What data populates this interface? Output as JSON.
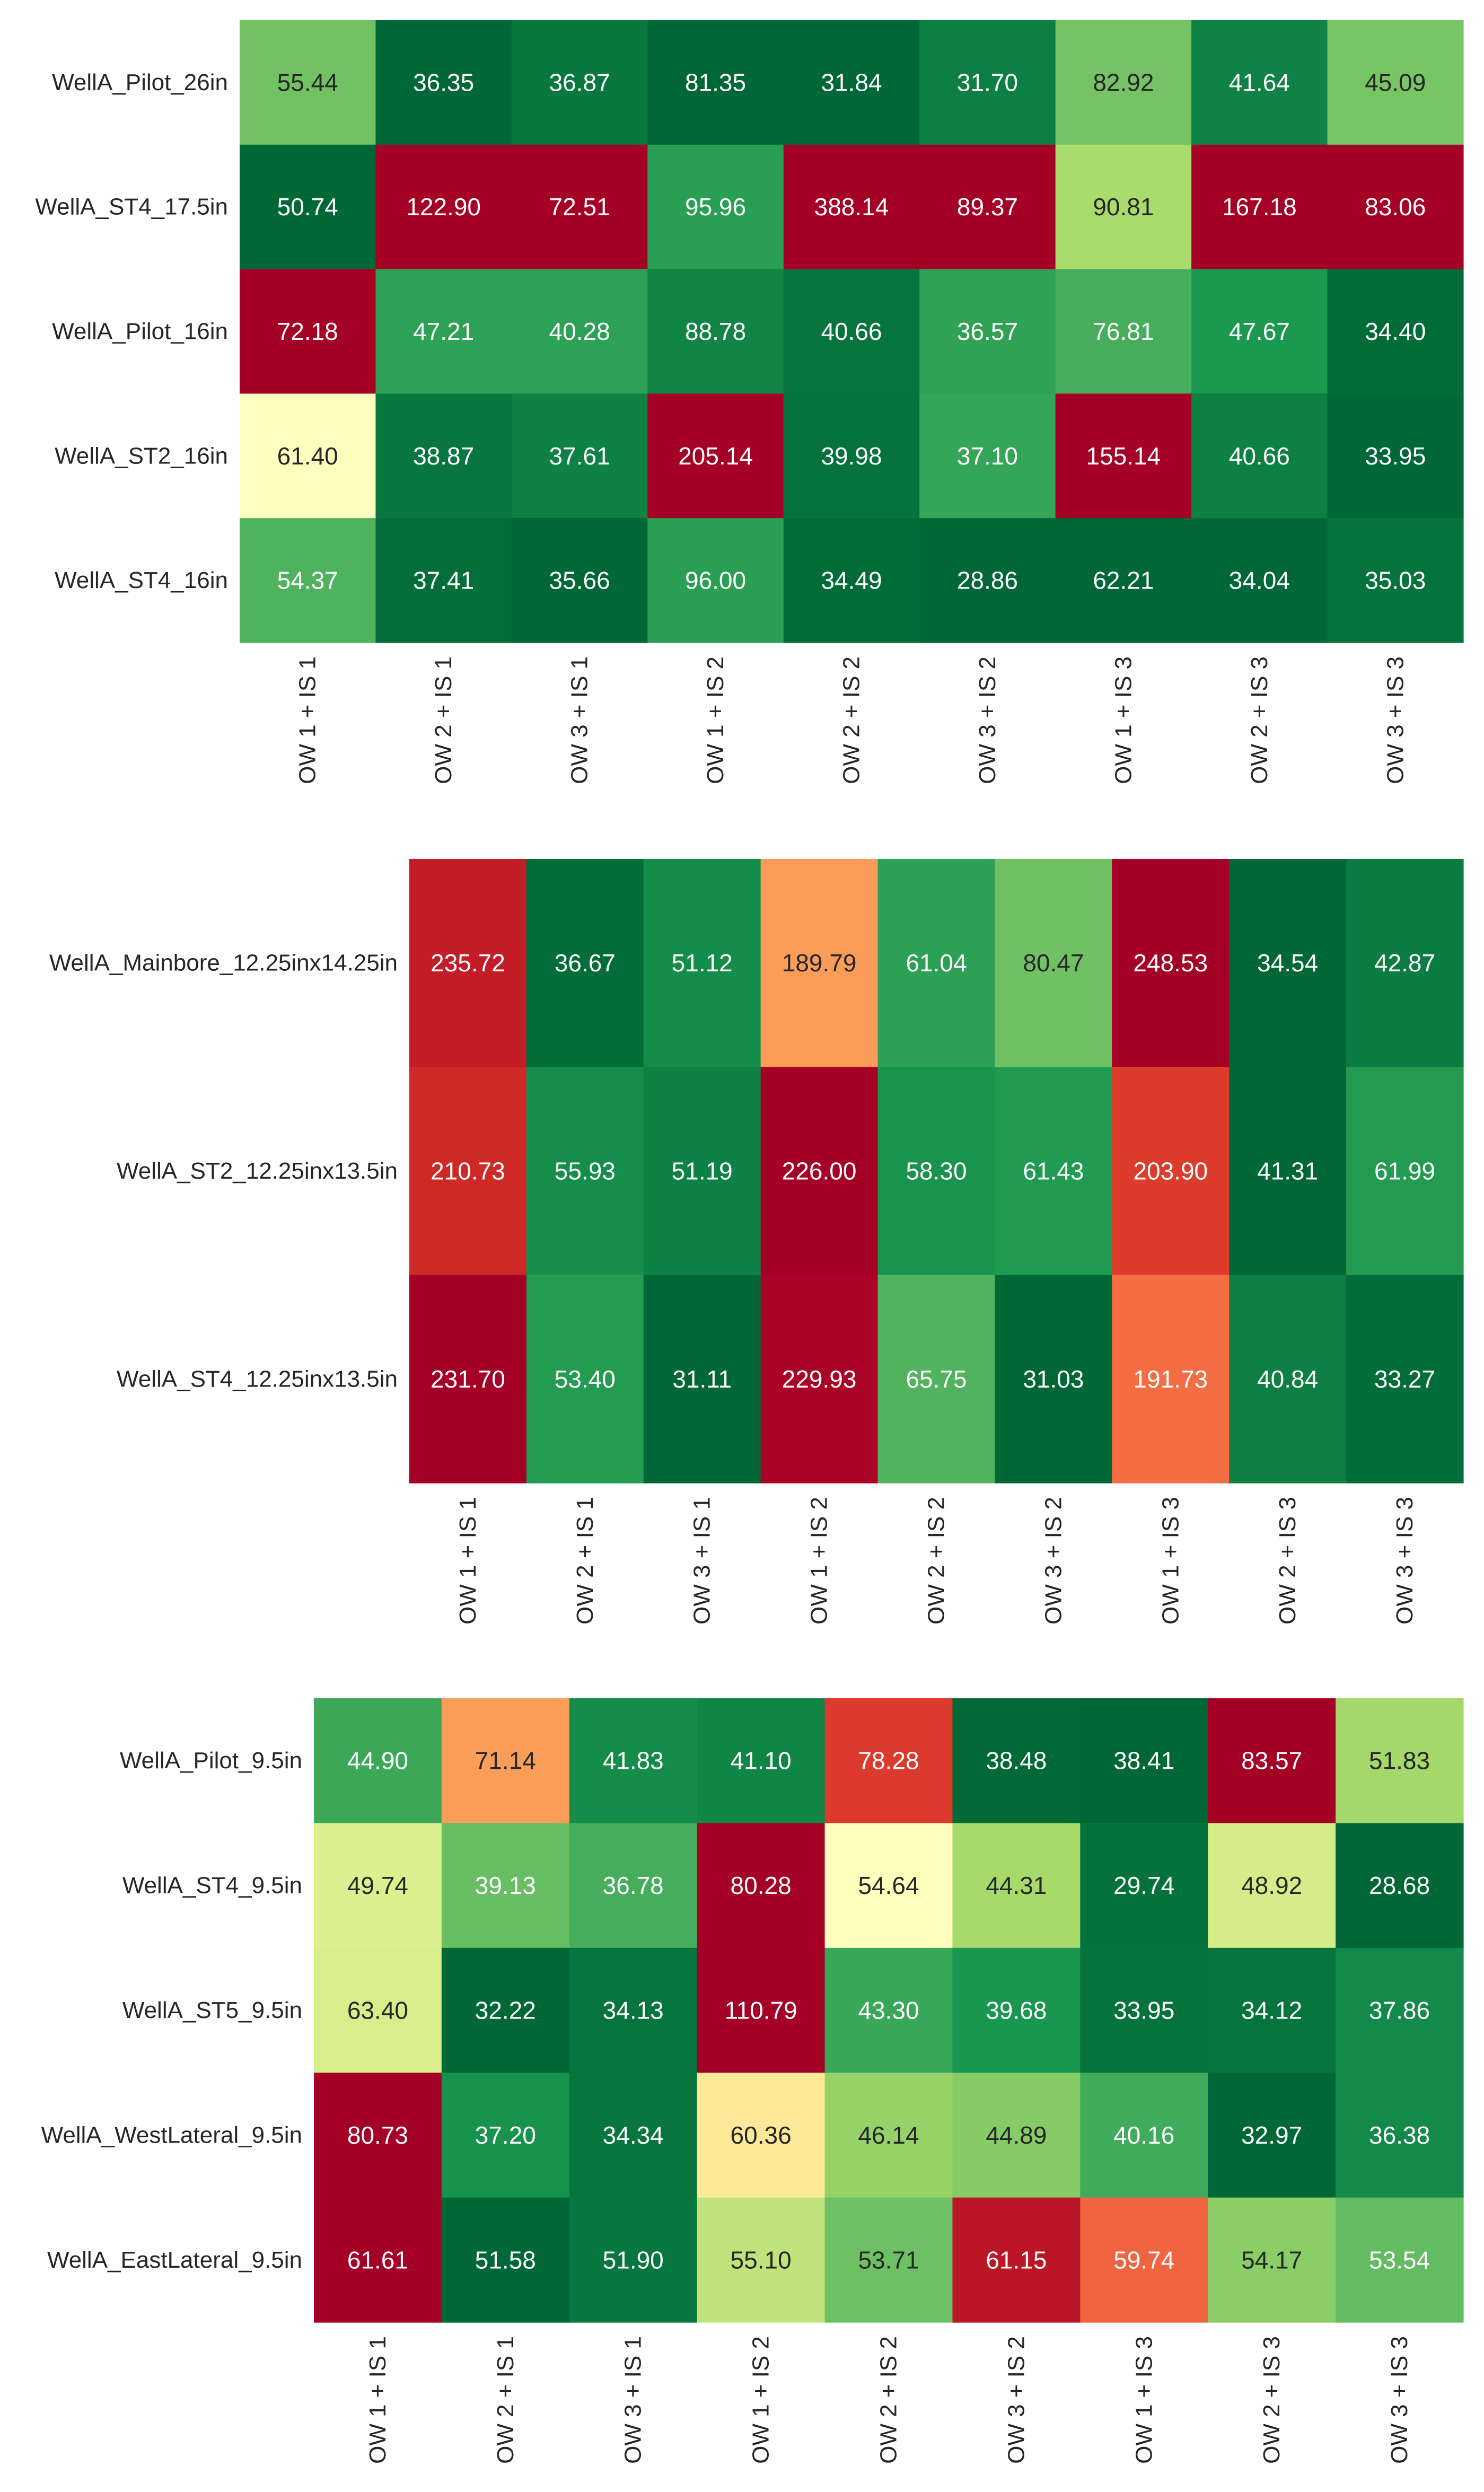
{
  "chart_data": [
    {
      "type": "heatmap",
      "rows": [
        "WellA_Pilot_26in",
        "WellA_ST4_17.5in",
        "WellA_Pilot_16in",
        "WellA_ST2_16in",
        "WellA_ST4_16in"
      ],
      "columns": [
        "OW 1 + IS 1",
        "OW 2 + IS 1",
        "OW 3 + IS 1",
        "OW 1 + IS 2",
        "OW 2 + IS 2",
        "OW 3 + IS 2",
        "OW 1 + IS 3",
        "OW 2 + IS 3",
        "OW 3 + IS 3"
      ],
      "values": [
        [
          55.44,
          36.35,
          36.87,
          81.35,
          31.84,
          31.7,
          82.92,
          41.64,
          45.09
        ],
        [
          50.74,
          122.9,
          72.51,
          95.96,
          388.14,
          89.37,
          90.81,
          167.18,
          83.06
        ],
        [
          72.18,
          47.21,
          40.28,
          88.78,
          40.66,
          36.57,
          76.81,
          47.67,
          34.4
        ],
        [
          61.4,
          38.87,
          37.61,
          205.14,
          39.98,
          37.1,
          155.14,
          40.66,
          33.95
        ],
        [
          54.37,
          37.41,
          35.66,
          96.0,
          34.49,
          28.86,
          62.21,
          34.04,
          35.03
        ]
      ],
      "labels": [
        [
          "55.44",
          "36.35",
          "36.87",
          "81.35",
          "31.84",
          "31.70",
          "82.92",
          "41.64",
          "45.09"
        ],
        [
          "50.74",
          "122.90",
          "72.51",
          "95.96",
          "388.14",
          "89.37",
          "90.81",
          "167.18",
          "83.06"
        ],
        [
          "72.18",
          "47.21",
          "40.28",
          "88.78",
          "40.66",
          "36.57",
          "76.81",
          "47.67",
          "34.40"
        ],
        [
          "61.40",
          "38.87",
          "37.61",
          "205.14",
          "39.98",
          "37.10",
          "155.14",
          "40.66",
          "33.95"
        ],
        [
          "54.37",
          "37.41",
          "35.66",
          "96.00",
          "34.49",
          "28.86",
          "62.21",
          "34.04",
          "35.03"
        ]
      ],
      "colormap": "RdYlGn_r, normalized per column"
    },
    {
      "type": "heatmap",
      "rows": [
        "WellA_Mainbore_12.25inx14.25in",
        "WellA_ST2_12.25inx13.5in",
        "WellA_ST4_12.25inx13.5in"
      ],
      "columns": [
        "OW 1 + IS 1",
        "OW 2 + IS 1",
        "OW 3 + IS 1",
        "OW 1 + IS 2",
        "OW 2 + IS 2",
        "OW 3 + IS 2",
        "OW 1 + IS 3",
        "OW 2 + IS 3",
        "OW 3 + IS 3"
      ],
      "values": [
        [
          235.72,
          36.67,
          51.12,
          189.79,
          61.04,
          80.47,
          248.53,
          34.54,
          42.87
        ],
        [
          210.73,
          55.93,
          51.19,
          226.0,
          58.3,
          61.43,
          203.9,
          41.31,
          61.99
        ],
        [
          231.7,
          53.4,
          31.11,
          229.93,
          65.75,
          31.03,
          191.73,
          40.84,
          33.27
        ]
      ],
      "labels": [
        [
          "235.72",
          "36.67",
          "51.12",
          "189.79",
          "61.04",
          "80.47",
          "248.53",
          "34.54",
          "42.87"
        ],
        [
          "210.73",
          "55.93",
          "51.19",
          "226.00",
          "58.30",
          "61.43",
          "203.90",
          "41.31",
          "61.99"
        ],
        [
          "231.70",
          "53.40",
          "31.11",
          "229.93",
          "65.75",
          "31.03",
          "191.73",
          "40.84",
          "33.27"
        ]
      ],
      "colormap": "RdYlGn_r, normalized per row"
    },
    {
      "type": "heatmap",
      "rows": [
        "WellA_Pilot_9.5in",
        "WellA_ST4_9.5in",
        "WellA_ST5_9.5in",
        "WellA_WestLateral_9.5in",
        "WellA_EastLateral_9.5in"
      ],
      "columns": [
        "OW 1 + IS 1",
        "OW 2 + IS 1",
        "OW 3 + IS 1",
        "OW 1 + IS 2",
        "OW 2 + IS 2",
        "OW 3 + IS 2",
        "OW 1 + IS 3",
        "OW 2 + IS 3",
        "OW 3 + IS 3"
      ],
      "values": [
        [
          44.9,
          71.14,
          41.83,
          41.1,
          78.28,
          38.48,
          38.41,
          83.57,
          51.83
        ],
        [
          49.74,
          39.13,
          36.78,
          80.28,
          54.64,
          44.31,
          29.74,
          48.92,
          28.68
        ],
        [
          63.4,
          32.22,
          34.13,
          110.79,
          43.3,
          39.68,
          33.95,
          34.12,
          37.86
        ],
        [
          80.73,
          37.2,
          34.34,
          60.36,
          46.14,
          44.89,
          40.16,
          32.97,
          36.38
        ],
        [
          61.61,
          51.58,
          51.9,
          55.1,
          53.71,
          61.15,
          59.74,
          54.17,
          53.54
        ]
      ],
      "labels": [
        [
          "44.90",
          "71.14",
          "41.83",
          "41.10",
          "78.28",
          "38.48",
          "38.41",
          "83.57",
          "51.83"
        ],
        [
          "49.74",
          "39.13",
          "36.78",
          "80.28",
          "54.64",
          "44.31",
          "29.74",
          "48.92",
          "28.68"
        ],
        [
          "63.40",
          "32.22",
          "34.13",
          "110.79",
          "43.30",
          "39.68",
          "33.95",
          "34.12",
          "37.86"
        ],
        [
          "80.73",
          "37.20",
          "34.34",
          "60.36",
          "46.14",
          "44.89",
          "40.16",
          "32.97",
          "36.38"
        ],
        [
          "61.61",
          "51.58",
          "51.90",
          "55.10",
          "53.71",
          "61.15",
          "59.74",
          "54.17",
          "53.54"
        ]
      ],
      "colormap": "RdYlGn_r, normalized per row"
    }
  ]
}
